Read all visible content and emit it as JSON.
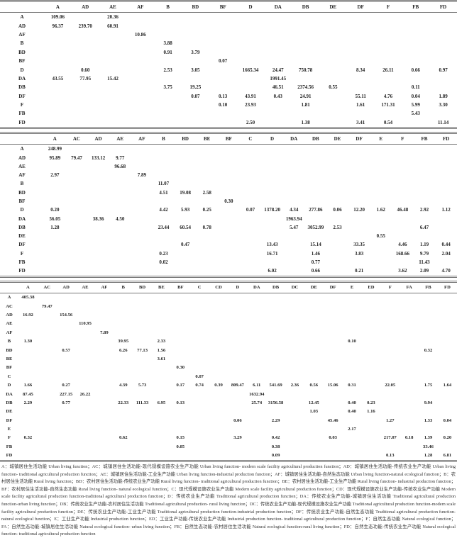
{
  "tables": [
    {
      "columns": [
        "A",
        "AD",
        "AE",
        "AF",
        "B",
        "BD",
        "BF",
        "D",
        "DA",
        "DB",
        "DE",
        "DF",
        "F",
        "FB",
        "FD"
      ],
      "rows": [
        {
          "label": "A",
          "cells": {
            "A": "109.06",
            "AE": "20.36"
          }
        },
        {
          "label": "AD",
          "cells": {
            "A": "96.37",
            "AD": "239.70",
            "AE": "60.91"
          }
        },
        {
          "label": "AF",
          "cells": {
            "AF": "10.86"
          }
        },
        {
          "label": "B",
          "cells": {
            "B": "3.88"
          }
        },
        {
          "label": "BD",
          "cells": {
            "B": "0.91",
            "BD": "3.79"
          }
        },
        {
          "label": "BF",
          "cells": {
            "BF": "0.07"
          }
        },
        {
          "label": "D",
          "cells": {
            "AD": "0.60",
            "B": "2.53",
            "BD": "3.05",
            "D": "1665.34",
            "DA": "24.47",
            "DB": "750.78",
            "DF": "8.34",
            "F": "26.11",
            "FB": "0.66",
            "FD": "0.97"
          }
        },
        {
          "label": "DA",
          "cells": {
            "A": "43.55",
            "AD": "77.95",
            "AE": "15.42",
            "DA": "1991.45"
          }
        },
        {
          "label": "DB",
          "cells": {
            "B": "3.75",
            "BD": "19.25",
            "DA": "46.51",
            "DB": "2374.56",
            "DE": "0.55",
            "FB": "0.11"
          }
        },
        {
          "label": "DF",
          "cells": {
            "BD": "0.07",
            "BF": "0.13",
            "D": "43.91",
            "DA": "0.43",
            "DB": "24.91",
            "DF": "55.11",
            "F": "4.76",
            "FB": "0.04",
            "FD": "1.89"
          }
        },
        {
          "label": "F",
          "cells": {
            "BF": "0.10",
            "D": "23.93",
            "DB": "1.81",
            "DF": "1.61",
            "F": "171.31",
            "FB": "5.99",
            "FD": "3.30"
          }
        },
        {
          "label": "FB",
          "cells": {
            "FB": "5.43"
          }
        },
        {
          "label": "FD",
          "cells": {
            "D": "2.50",
            "DB": "1.38",
            "DF": "3.41",
            "F": "0.54",
            "FD": "11.14"
          }
        }
      ]
    },
    {
      "columns": [
        "A",
        "AC",
        "AD",
        "AE",
        "AF",
        "B",
        "BD",
        "BE",
        "BF",
        "C",
        "D",
        "DA",
        "DB",
        "DE",
        "DF",
        "E",
        "F",
        "FB",
        "FD"
      ],
      "rows": [
        {
          "label": "A",
          "cells": {
            "A": "248.99"
          }
        },
        {
          "label": "AD",
          "cells": {
            "A": "95.89",
            "AC": "79.47",
            "AD": "133.12",
            "AE": "9.77"
          }
        },
        {
          "label": "AE",
          "cells": {
            "AE": "96.68"
          }
        },
        {
          "label": "AF",
          "cells": {
            "A": "2.97",
            "AF": "7.89"
          }
        },
        {
          "label": "B",
          "cells": {
            "B": "11.07"
          }
        },
        {
          "label": "BD",
          "cells": {
            "B": "4.51",
            "BD": "19.08",
            "BE": "2.58"
          }
        },
        {
          "label": "BF",
          "cells": {
            "BF": "0.30"
          }
        },
        {
          "label": "D",
          "cells": {
            "A": "0.20",
            "B": "4.42",
            "BD": "5.93",
            "BE": "0.25",
            "C": "0.07",
            "D": "1378.20",
            "DA": "4.34",
            "DB": "277.86",
            "DE": "0.06",
            "DF": "12.20",
            "E": "1.62",
            "F": "46.48",
            "FB": "2.92",
            "FD": "1.12"
          }
        },
        {
          "label": "DA",
          "cells": {
            "A": "56.05",
            "AD": "38.36",
            "AE": "4.50",
            "DA": "1963.94"
          }
        },
        {
          "label": "DB",
          "cells": {
            "A": "1.28",
            "B": "23.44",
            "BD": "60.54",
            "BE": "0.78",
            "DA": "5.47",
            "DB": "3052.99",
            "DE": "2.53",
            "FB": "6.47"
          }
        },
        {
          "label": "DE",
          "cells": {
            "E": "0.55"
          }
        },
        {
          "label": "DF",
          "cells": {
            "BD": "0.47",
            "D": "13.43",
            "DB": "15.14",
            "DF": "33.35",
            "F": "4.46",
            "FB": "1.19",
            "FD": "0.44"
          }
        },
        {
          "label": "F",
          "cells": {
            "B": "0.23",
            "D": "16.71",
            "DB": "1.46",
            "DF": "3.83",
            "F": "168.66",
            "FB": "9.79",
            "FD": "2.04"
          }
        },
        {
          "label": "FB",
          "cells": {
            "B": "0.02",
            "DB": "0.77",
            "FB": "11.43"
          }
        },
        {
          "label": "FD",
          "cells": {
            "D": "6.02",
            "DB": "0.66",
            "DF": "0.21",
            "F": "3.62",
            "FB": "2.09",
            "FD": "4.70"
          }
        }
      ]
    },
    {
      "columns": [
        "A",
        "AC",
        "AD",
        "AE",
        "AF",
        "B",
        "BD",
        "BE",
        "BF",
        "C",
        "CD",
        "D",
        "DA",
        "DB",
        "DC",
        "DE",
        "DF",
        "E",
        "ED",
        "F",
        "FA",
        "FB",
        "FD"
      ],
      "rows": [
        {
          "label": "A",
          "cells": {
            "A": "405.38"
          }
        },
        {
          "label": "AC",
          "cells": {
            "AC": "79.47"
          }
        },
        {
          "label": "AD",
          "cells": {
            "A": "16.92",
            "AD": "154.56"
          }
        },
        {
          "label": "AE",
          "cells": {
            "AE": "110.95"
          }
        },
        {
          "label": "AF",
          "cells": {
            "AF": "7.89"
          }
        },
        {
          "label": "B",
          "cells": {
            "A": "1.30",
            "B": "39.95",
            "BE": "2.33",
            "E": "0.10"
          }
        },
        {
          "label": "BD",
          "cells": {
            "AD": "0.57",
            "B": "6.26",
            "BD": "77.13",
            "BE": "1.56",
            "FB": "0.32"
          }
        },
        {
          "label": "BE",
          "cells": {
            "BE": "3.61"
          }
        },
        {
          "label": "BF",
          "cells": {
            "BF": "0.30"
          }
        },
        {
          "label": "C",
          "cells": {
            "C": "0.07"
          }
        },
        {
          "label": "D",
          "cells": {
            "A": "1.66",
            "AD": "0.27",
            "B": "4.39",
            "BD": "5.73",
            "BF": "0.17",
            "C": "0.74",
            "CD": "0.39",
            "D": "809.47",
            "DA": "6.11",
            "DB": "541.69",
            "DC": "2.36",
            "DE": "0.56",
            "DF": "15.06",
            "E": "0.31",
            "F": "22.05",
            "FB": "1.75",
            "FD": "1.64"
          }
        },
        {
          "label": "DA",
          "cells": {
            "A": "87.45",
            "AD": "227.15",
            "AE": "26.22",
            "DA": "1632.94"
          }
        },
        {
          "label": "DB",
          "cells": {
            "A": "2.29",
            "AD": "0.77",
            "B": "22.33",
            "BD": "111.33",
            "BE": "6.95",
            "BF": "0.13",
            "DA": "25.74",
            "DB": "3156.58",
            "DE": "12.45",
            "E": "0.40",
            "ED": "0.23",
            "FB": "9.94"
          }
        },
        {
          "label": "DE",
          "cells": {
            "DE": "1.03",
            "E": "0.40",
            "ED": "1.16"
          }
        },
        {
          "label": "DF",
          "cells": {
            "D": "0.06",
            "DB": "2.29",
            "DF": "45.46",
            "F": "1.27",
            "FB": "1.33",
            "FD": "0.04"
          }
        },
        {
          "label": "E",
          "cells": {
            "E": "2.17"
          }
        },
        {
          "label": "F",
          "cells": {
            "A": "0.32",
            "B": "0.62",
            "BF": "0.15",
            "D": "3.29",
            "DB": "0.42",
            "DF": "0.03",
            "F": "217.07",
            "FA": "0.18",
            "FB": "1.39",
            "FD": "0.20"
          }
        },
        {
          "label": "FB",
          "cells": {
            "BF": "0.05",
            "DB": "0.38",
            "FB": "33.46"
          }
        },
        {
          "label": "FD",
          "cells": {
            "DB": "0.09",
            "F": "0.13",
            "FB": "1.28",
            "FD": "6.81"
          }
        }
      ]
    }
  ],
  "footnote": "A：城镇居住生活功能 Urban living function；AC：城镇居住生活功能-现代规模设施农业生产功能 Urban living function- modern scale facility agricultural production function；AD：城镇居住生活功能-传统农业生产功能 Urban living function- traditional agricultural production function；AE：城镇居住生活功能-工业生产功能 Urban living function-industrial production function；AF：城镇居住生活功能-自然生态功能 Urban living function-natural ecological function；B：农村居住生活功能 Rural living function；BD：农村居住生活功能-传统农业生产功能 Rural living function- traditional agricultural production function；BE：农村居住生活功能-工业生产功能 Rural living function- industrial production function；BF：农村居住生活功能-自然生态功能 Rural living function- natural ecological function；C：现代规模设施农业生产功能 Modern scale facility agricultural production function；CD：现代规模设施农业生产功能-传统农业生产功能 Modern scale facility agricultural production function-traditional agricultural production function；D：传统农业生产功能 Traditional agricultural production function；DA：传统农业生产功能-城镇居住生活功能 Traditional agricultural production function-urban living function；DB：传统农业生产功能-农村居住生活功能 Traditional agricultural production- rural living function；DC：传统农业生产功能-现代规模设施农业生产功能 Traditional agricultural production function-modern scale facility agricultural production function；DE：传统农业生产功能-工业生产功能 Traditional agricultural production function-industrial production function；DF：传统农业生产功能-自然生态功能 Traditional agricultural production function-natural ecological function；E：工业生产功能 Industrial production function；ED：工业生产功能-传统农业生产功能 Industrial production function- traditional agricultural production function；F：自然生态功能 Natural ecological function；FA：自然生态功能-城镇居住生活功能 Natural ecological function- urban living function；FB：自然生态功能-农村居住生活功能 Natural ecological function-rural living function；FD：自然生态功能-传统农业生产功能 Natural ecological function- traditional agricultural production function"
}
